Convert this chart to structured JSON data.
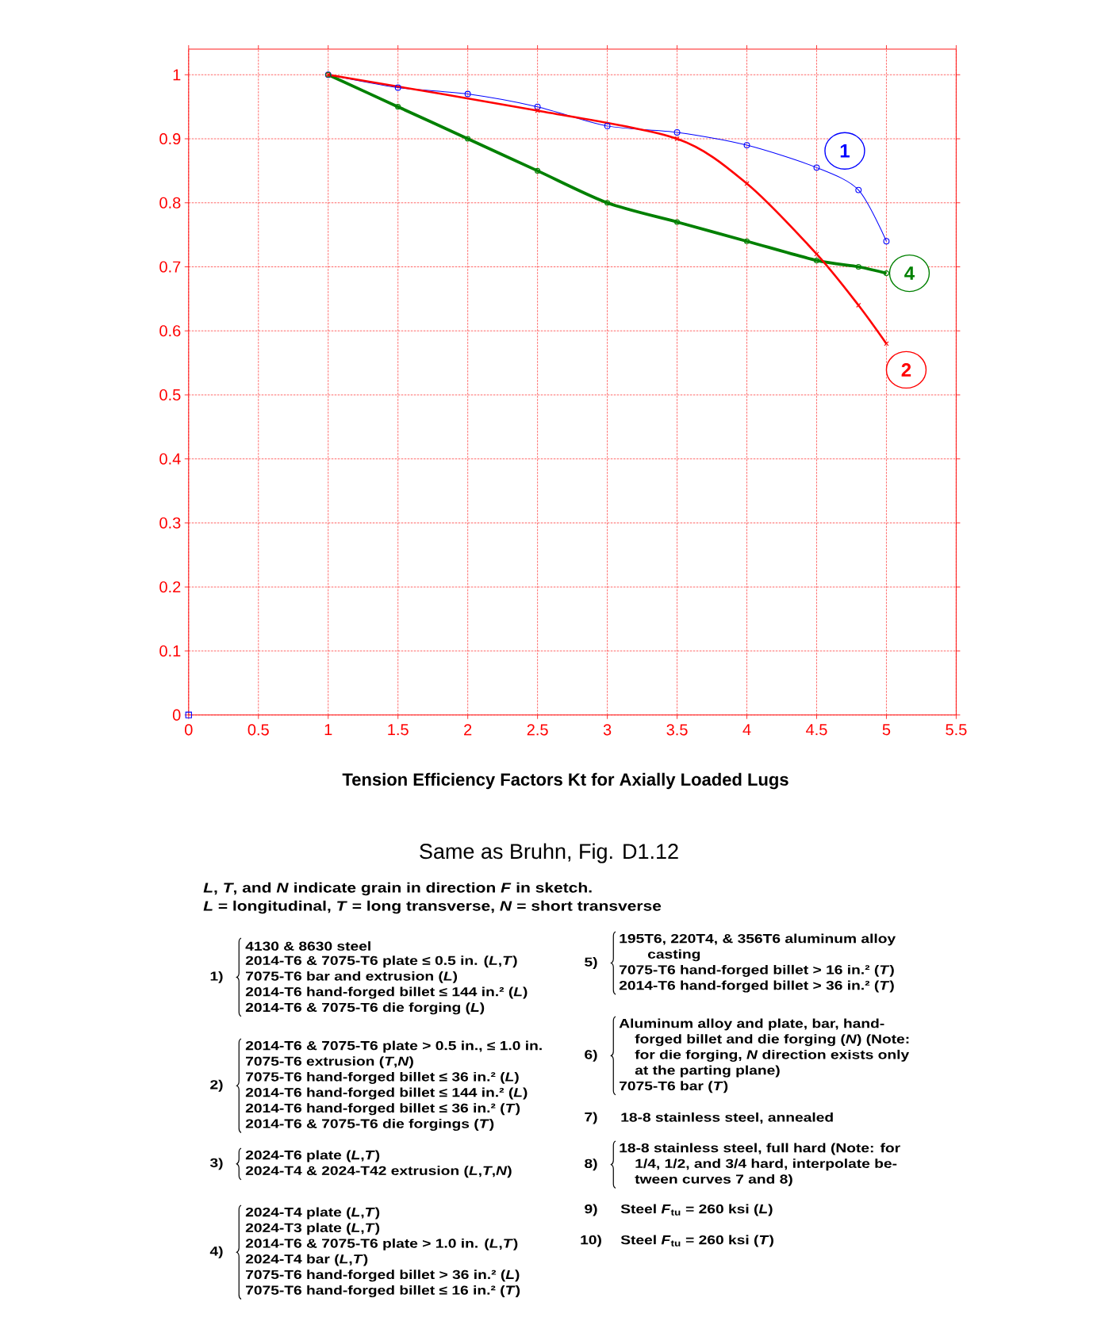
{
  "chart_data": {
    "type": "line",
    "title": "Tension Efficiency Factors Kt for Axially Loaded Lugs",
    "xlim": [
      0,
      5.5
    ],
    "xticks": [
      0,
      0.5,
      1,
      1.5,
      2,
      2.5,
      3,
      3.5,
      4,
      4.5,
      5,
      5.5
    ],
    "ylim": [
      0,
      1.04
    ],
    "yticks": [
      0,
      0.1,
      0.2,
      0.3,
      0.4,
      0.5,
      0.6,
      0.7,
      0.8,
      0.9,
      1
    ],
    "grid": true,
    "line_style": "solid",
    "legend": "right",
    "series": [
      {
        "name": "1",
        "color": "#0000ff",
        "marker": "circle",
        "x": [
          1,
          1.5,
          2,
          2.5,
          3,
          3.5,
          4,
          4.5,
          4.8,
          5
        ],
        "values": [
          1.0,
          0.98,
          0.97,
          0.95,
          0.92,
          0.91,
          0.89,
          0.855,
          0.82,
          0.74
        ]
      },
      {
        "name": "4",
        "color": "#008000",
        "marker": "circle",
        "x": [
          1,
          1.5,
          2,
          2.5,
          3,
          3.5,
          4,
          4.5,
          4.8,
          5
        ],
        "values": [
          1.0,
          0.95,
          0.9,
          0.85,
          0.8,
          0.77,
          0.74,
          0.71,
          0.7,
          0.69
        ]
      },
      {
        "name": "2",
        "color": "#ff0000",
        "marker": "cross",
        "x": [
          1,
          2.5,
          3.5,
          4,
          4.5,
          4.8,
          5
        ],
        "values": [
          1.0,
          0.944,
          0.9,
          0.83,
          0.72,
          0.64,
          0.58
        ]
      },
      {
        "type": "scatter",
        "color": "#0000ff",
        "marker": "square",
        "x": [
          0
        ],
        "values": [
          0
        ]
      }
    ],
    "annotations": [
      "Same as Bruhn, Fig. D1.12",
      "*L*, *T*, and *N* indicate grain in direction *F* in sketch.",
      "*L* = longitudinal, *T* = long transverse, *N* = short transverse",
      "1)",
      "4130 & 8630 steel",
      "2014-T6 & 7075-T6 plate ≤ 0.5 in. (*L*,*T*)",
      "7075-T6 bar and extrusion (*L*)",
      "2014-T6 hand-forged billet ≤ 144 in.² (*L*)",
      "2014-T6 & 7075-T6 die forging (*L*)",
      "2)",
      "2014-T6 & 7075-T6 plate > 0.5 in., ≤ 1.0 in.",
      "7075-T6 extrusion (*T*,*N*)",
      "7075-T6 hand-forged billet ≤ 36 in.² (*L*)",
      "2014-T6 hand-forged billet ≤ 144 in.² (*L*)",
      "2014-T6 hand-forged billet ≤ 36 in.² (*T*)",
      "2014-T6 & 7075-T6 die forgings (*T*)",
      "3)",
      "2024-T6 plate (*L*,*T*)",
      "2024-T4 & 2024-T42 extrusion (*L*,*T*,*N*)",
      "4)",
      "2024-T4 plate (*L*,*T*)",
      "2024-T3 plate (*L*,*T*)",
      "2014-T6 & 7075-T6 plate > 1.0 in. (*L*,*T*)",
      "2024-T4 bar (*L*,*T*)",
      "7075-T6 hand-forged billet > 36 in.² (*L*)",
      "7075-T6 hand-forged billet ≤ 16 in.² (*T*)",
      "5)",
      "195T6, 220T4, & 356T6 aluminum alloy",
      "casting",
      "7075-T6 hand-forged billet > 16 in.² (*T*)",
      "2014-T6 hand-forged billet > 36 in.² (*T*)",
      "6)",
      "Aluminum alloy and plate, bar, hand-",
      "forged billet and die forging (*N*) (Note:",
      "for die forging, *N* direction exists only",
      "at the parting plane)",
      "7075-T6 bar (*T*)",
      "7)",
      "18-8 stainless steel, annealed",
      "8)",
      "18-8 stainless steel, full hard (Note: for",
      "1/4, 1/2, and 3/4 hard, interpolate be-",
      "tween curves 7 and 8)",
      "9)",
      "Steel *F*$_{tu}$ = 260 ksi (*L*)",
      "10)",
      "Steel *F*$_{tu}$ = 260 ksi (*T*)"
    ]
  }
}
